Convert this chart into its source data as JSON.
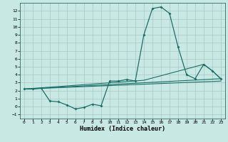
{
  "xlabel": "Humidex (Indice chaleur)",
  "background_color": "#c8e8e4",
  "grid_color": "#a8c8c4",
  "line_color": "#1a7068",
  "xlim": [
    -0.5,
    23.5
  ],
  "ylim": [
    -1.5,
    13.0
  ],
  "xticks": [
    0,
    1,
    2,
    3,
    4,
    5,
    6,
    7,
    8,
    9,
    10,
    11,
    12,
    13,
    14,
    15,
    16,
    17,
    18,
    19,
    20,
    21,
    22,
    23
  ],
  "yticks": [
    -1,
    0,
    1,
    2,
    3,
    4,
    5,
    6,
    7,
    8,
    9,
    10,
    11,
    12
  ],
  "series1_x": [
    0,
    1,
    2,
    3,
    4,
    5,
    6,
    7,
    8,
    9,
    10,
    11,
    12,
    13,
    14,
    15,
    16,
    17,
    18,
    19,
    20,
    21,
    22,
    23
  ],
  "series1_y": [
    2.2,
    2.2,
    2.3,
    0.7,
    0.6,
    0.2,
    -0.3,
    -0.1,
    0.3,
    0.1,
    3.2,
    3.2,
    3.4,
    3.2,
    9.0,
    12.3,
    12.5,
    11.7,
    7.5,
    4.0,
    3.5,
    5.3,
    4.5,
    3.5
  ],
  "series2_x": [
    0,
    14,
    21,
    22,
    23
  ],
  "series2_y": [
    2.2,
    3.3,
    5.3,
    4.5,
    3.5
  ],
  "series3_x": [
    0,
    23
  ],
  "series3_y": [
    2.2,
    3.5
  ],
  "series4_x": [
    0,
    23
  ],
  "series4_y": [
    2.2,
    3.2
  ]
}
